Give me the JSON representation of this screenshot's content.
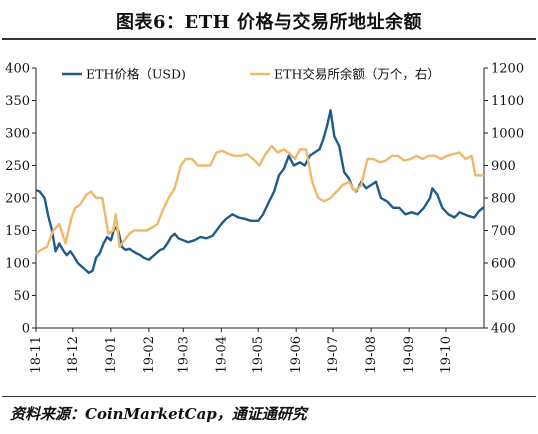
{
  "header": {
    "title": "图表6：ETH 价格与交易所地址余额"
  },
  "footer": {
    "source": "资料来源：CoinMarketCap，通证通研究"
  },
  "chart_data": {
    "type": "line",
    "title": "图表6：ETH 价格与交易所地址余额",
    "x_ticks": [
      "18-11",
      "18-12",
      "19-01",
      "19-02",
      "19-03",
      "19-04",
      "19-05",
      "19-06",
      "19-07",
      "19-08",
      "19-09",
      "19-10"
    ],
    "y_left": {
      "min": 0,
      "max": 400,
      "ticks": [
        0,
        50,
        100,
        150,
        200,
        250,
        300,
        350,
        400
      ]
    },
    "y_right": {
      "min": 400,
      "max": 1200,
      "ticks": [
        400,
        500,
        600,
        700,
        800,
        900,
        1000,
        1100,
        1200
      ]
    },
    "legend_position": "top",
    "grid": false,
    "colors": {
      "price": "#1f5c8a",
      "balance": "#f0b86c"
    },
    "series": [
      {
        "name": "ETH价格（USD)",
        "axis": "left",
        "color": "#1f5c8a",
        "x": [
          "2018-11-01",
          "2018-11-04",
          "2018-11-08",
          "2018-11-11",
          "2018-11-14",
          "2018-11-17",
          "2018-11-20",
          "2018-11-23",
          "2018-11-26",
          "2018-11-29",
          "2018-12-02",
          "2018-12-05",
          "2018-12-08",
          "2018-12-11",
          "2018-12-14",
          "2018-12-17",
          "2018-12-20",
          "2018-12-23",
          "2018-12-26",
          "2018-12-29",
          "2019-01-01",
          "2019-01-04",
          "2019-01-07",
          "2019-01-10",
          "2019-01-13",
          "2019-01-16",
          "2019-01-19",
          "2019-01-22",
          "2019-01-25",
          "2019-01-28",
          "2019-02-01",
          "2019-02-04",
          "2019-02-07",
          "2019-02-10",
          "2019-02-13",
          "2019-02-16",
          "2019-02-19",
          "2019-02-22",
          "2019-02-25",
          "2019-03-01",
          "2019-03-05",
          "2019-03-10",
          "2019-03-15",
          "2019-03-20",
          "2019-03-25",
          "2019-04-01",
          "2019-04-05",
          "2019-04-10",
          "2019-04-15",
          "2019-04-20",
          "2019-04-25",
          "2019-05-01",
          "2019-05-05",
          "2019-05-10",
          "2019-05-14",
          "2019-05-18",
          "2019-05-22",
          "2019-05-26",
          "2019-05-30",
          "2019-06-04",
          "2019-06-08",
          "2019-06-12",
          "2019-06-16",
          "2019-06-20",
          "2019-06-23",
          "2019-06-26",
          "2019-06-29",
          "2019-07-02",
          "2019-07-06",
          "2019-07-10",
          "2019-07-14",
          "2019-07-17",
          "2019-07-20",
          "2019-07-24",
          "2019-07-28",
          "2019-08-01",
          "2019-08-05",
          "2019-08-09",
          "2019-08-14",
          "2019-08-19",
          "2019-08-24",
          "2019-08-29",
          "2019-09-03",
          "2019-09-08",
          "2019-09-13",
          "2019-09-18",
          "2019-09-20",
          "2019-09-24",
          "2019-09-28",
          "2019-10-03",
          "2019-10-08",
          "2019-10-12",
          "2019-10-16",
          "2019-10-20",
          "2019-10-24",
          "2019-10-28",
          "2019-11-01"
        ],
        "values": [
          212,
          210,
          200,
          172,
          150,
          118,
          130,
          120,
          112,
          118,
          110,
          100,
          95,
          90,
          85,
          88,
          108,
          115,
          130,
          140,
          135,
          155,
          150,
          125,
          120,
          122,
          118,
          115,
          112,
          108,
          105,
          110,
          115,
          120,
          122,
          130,
          140,
          145,
          138,
          135,
          132,
          135,
          140,
          138,
          142,
          160,
          168,
          175,
          170,
          168,
          165,
          165,
          175,
          195,
          210,
          235,
          245,
          265,
          250,
          255,
          250,
          265,
          270,
          275,
          290,
          310,
          335,
          295,
          280,
          240,
          230,
          215,
          210,
          225,
          215,
          220,
          225,
          200,
          195,
          185,
          185,
          175,
          178,
          175,
          185,
          200,
          215,
          205,
          185,
          175,
          170,
          178,
          175,
          172,
          170,
          180,
          186
        ]
      },
      {
        "name": "ETH交易所余额（万个，右）",
        "axis": "right",
        "color": "#f0b86c",
        "x": [
          "2018-11-01",
          "2018-11-05",
          "2018-11-10",
          "2018-11-15",
          "2018-11-20",
          "2018-11-25",
          "2018-11-30",
          "2018-12-03",
          "2018-12-07",
          "2018-12-12",
          "2018-12-16",
          "2018-12-20",
          "2018-12-25",
          "2018-12-30",
          "2019-01-03",
          "2019-01-05",
          "2019-01-08",
          "2019-01-12",
          "2019-01-16",
          "2019-01-20",
          "2019-01-25",
          "2019-01-30",
          "2019-02-04",
          "2019-02-08",
          "2019-02-12",
          "2019-02-17",
          "2019-02-22",
          "2019-02-27",
          "2019-03-03",
          "2019-03-08",
          "2019-03-13",
          "2019-03-18",
          "2019-03-23",
          "2019-03-28",
          "2019-04-02",
          "2019-04-07",
          "2019-04-12",
          "2019-04-17",
          "2019-04-22",
          "2019-04-27",
          "2019-05-02",
          "2019-05-07",
          "2019-05-12",
          "2019-05-17",
          "2019-05-22",
          "2019-05-27",
          "2019-05-31",
          "2019-06-04",
          "2019-06-09",
          "2019-06-14",
          "2019-06-19",
          "2019-06-24",
          "2019-06-29",
          "2019-07-04",
          "2019-07-09",
          "2019-07-14",
          "2019-07-19",
          "2019-07-24",
          "2019-07-29",
          "2019-08-03",
          "2019-08-08",
          "2019-08-13",
          "2019-08-18",
          "2019-08-23",
          "2019-08-28",
          "2019-09-02",
          "2019-09-07",
          "2019-09-12",
          "2019-09-17",
          "2019-09-22",
          "2019-09-27",
          "2019-10-02",
          "2019-10-07",
          "2019-10-12",
          "2019-10-17",
          "2019-10-22",
          "2019-10-25",
          "2019-10-28",
          "2019-11-01"
        ],
        "values": [
          630,
          640,
          650,
          700,
          720,
          660,
          740,
          770,
          780,
          810,
          820,
          800,
          800,
          690,
          700,
          750,
          650,
          670,
          690,
          700,
          700,
          700,
          710,
          720,
          760,
          800,
          830,
          900,
          920,
          920,
          900,
          900,
          900,
          940,
          945,
          935,
          930,
          930,
          935,
          920,
          900,
          935,
          960,
          940,
          950,
          935,
          920,
          950,
          950,
          850,
          800,
          790,
          800,
          820,
          840,
          850,
          820,
          840,
          920,
          920,
          910,
          915,
          930,
          930,
          915,
          920,
          930,
          920,
          930,
          930,
          920,
          930,
          935,
          940,
          920,
          930,
          870,
          870,
          870
        ]
      }
    ]
  }
}
